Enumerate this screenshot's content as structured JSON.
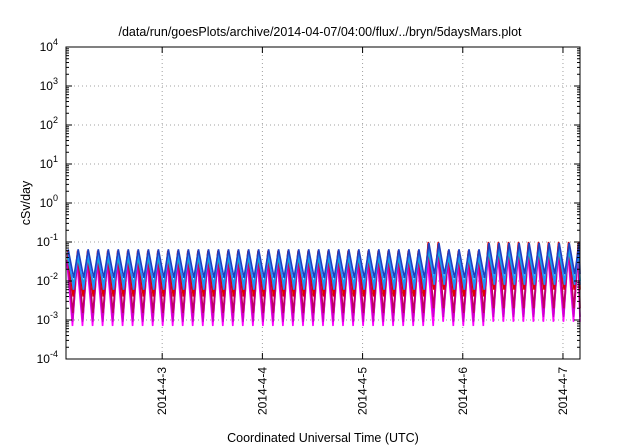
{
  "chart_data": {
    "type": "line",
    "title": "/data/run/goesPlots/archive/2014-04-07/04:00/flux/../bryn/5daysMars.plot",
    "xlabel": "Coordinated Universal Time (UTC)",
    "ylabel": "cSv/day",
    "yscale": "log",
    "ylim": [
      0.0001,
      10000
    ],
    "y_ticks": [
      {
        "base": "10",
        "exp": "-4",
        "value": 0.0001
      },
      {
        "base": "10",
        "exp": "-3",
        "value": 0.001
      },
      {
        "base": "10",
        "exp": "-2",
        "value": 0.01
      },
      {
        "base": "10",
        "exp": "-1",
        "value": 0.1
      },
      {
        "base": "10",
        "exp": "0",
        "value": 1
      },
      {
        "base": "10",
        "exp": "1",
        "value": 10
      },
      {
        "base": "10",
        "exp": "2",
        "value": 100
      },
      {
        "base": "10",
        "exp": "3",
        "value": 1000
      },
      {
        "base": "10",
        "exp": "4",
        "value": 10000
      }
    ],
    "xlim_days": [
      "2014-04-02 01:00",
      "2014-04-07 04:00"
    ],
    "x_ticks": [
      {
        "label": "2014-4-3",
        "day": 1.0
      },
      {
        "label": "2014-4-4",
        "day": 2.0
      },
      {
        "label": "2014-4-5",
        "day": 3.0
      },
      {
        "label": "2014-4-6",
        "day": 4.0
      },
      {
        "label": "2014-4-7",
        "day": 5.0
      }
    ],
    "grid": true,
    "pattern": "sawtooth, ~10 cycles per day",
    "series": [
      {
        "color": "#ff00ff",
        "peak": 0.03,
        "trough": 0.0007,
        "late_peak": 0.05,
        "late_trough": 0.0009
      },
      {
        "color": "#cc00cc",
        "peak": 0.035,
        "trough": 0.0009,
        "late_peak": 0.055,
        "late_trough": 0.0012
      },
      {
        "color": "#c00060",
        "peak": 0.05,
        "trough": 0.0015,
        "late_peak": 0.09,
        "late_trough": 0.002
      },
      {
        "color": "#e00000",
        "peak": 0.06,
        "trough": 0.004,
        "late_peak": 0.1,
        "late_trough": 0.006
      },
      {
        "color": "#00c0c0",
        "peak": 0.04,
        "trough": 0.008,
        "late_peak": 0.06,
        "late_trough": 0.01
      },
      {
        "color": "#2090ff",
        "peak": 0.055,
        "trough": 0.006,
        "late_peak": 0.085,
        "late_trough": 0.008
      },
      {
        "color": "#2040c0",
        "peak": 0.065,
        "trough": 0.012,
        "late_peak": 0.095,
        "late_trough": 0.015
      }
    ]
  }
}
